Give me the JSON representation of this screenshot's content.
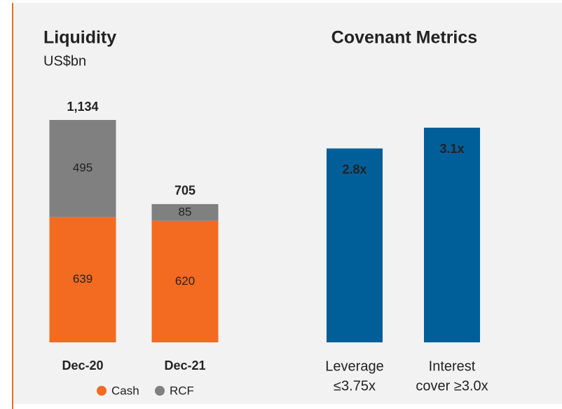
{
  "chart_data": [
    {
      "type": "stacked_bar",
      "title": "Liquidity",
      "subtitle": "US$bn",
      "categories": [
        "Dec-20",
        "Dec-21"
      ],
      "series": [
        {
          "name": "Cash",
          "color": "#f26b21",
          "values": [
            639,
            620
          ]
        },
        {
          "name": "RCF",
          "color": "#808080",
          "values": [
            495,
            85
          ]
        }
      ],
      "totals": [
        1134,
        705
      ],
      "total_labels": [
        "1,134",
        "705"
      ]
    },
    {
      "type": "bar",
      "title": "Covenant Metrics",
      "categories": [
        [
          "Leverage",
          "≤3.75x"
        ],
        [
          "Interest",
          "cover ≥3.0x"
        ]
      ],
      "values": [
        2.8,
        3.1
      ],
      "value_labels": [
        "2.8x",
        "3.1x"
      ],
      "color": "#005f99"
    }
  ]
}
